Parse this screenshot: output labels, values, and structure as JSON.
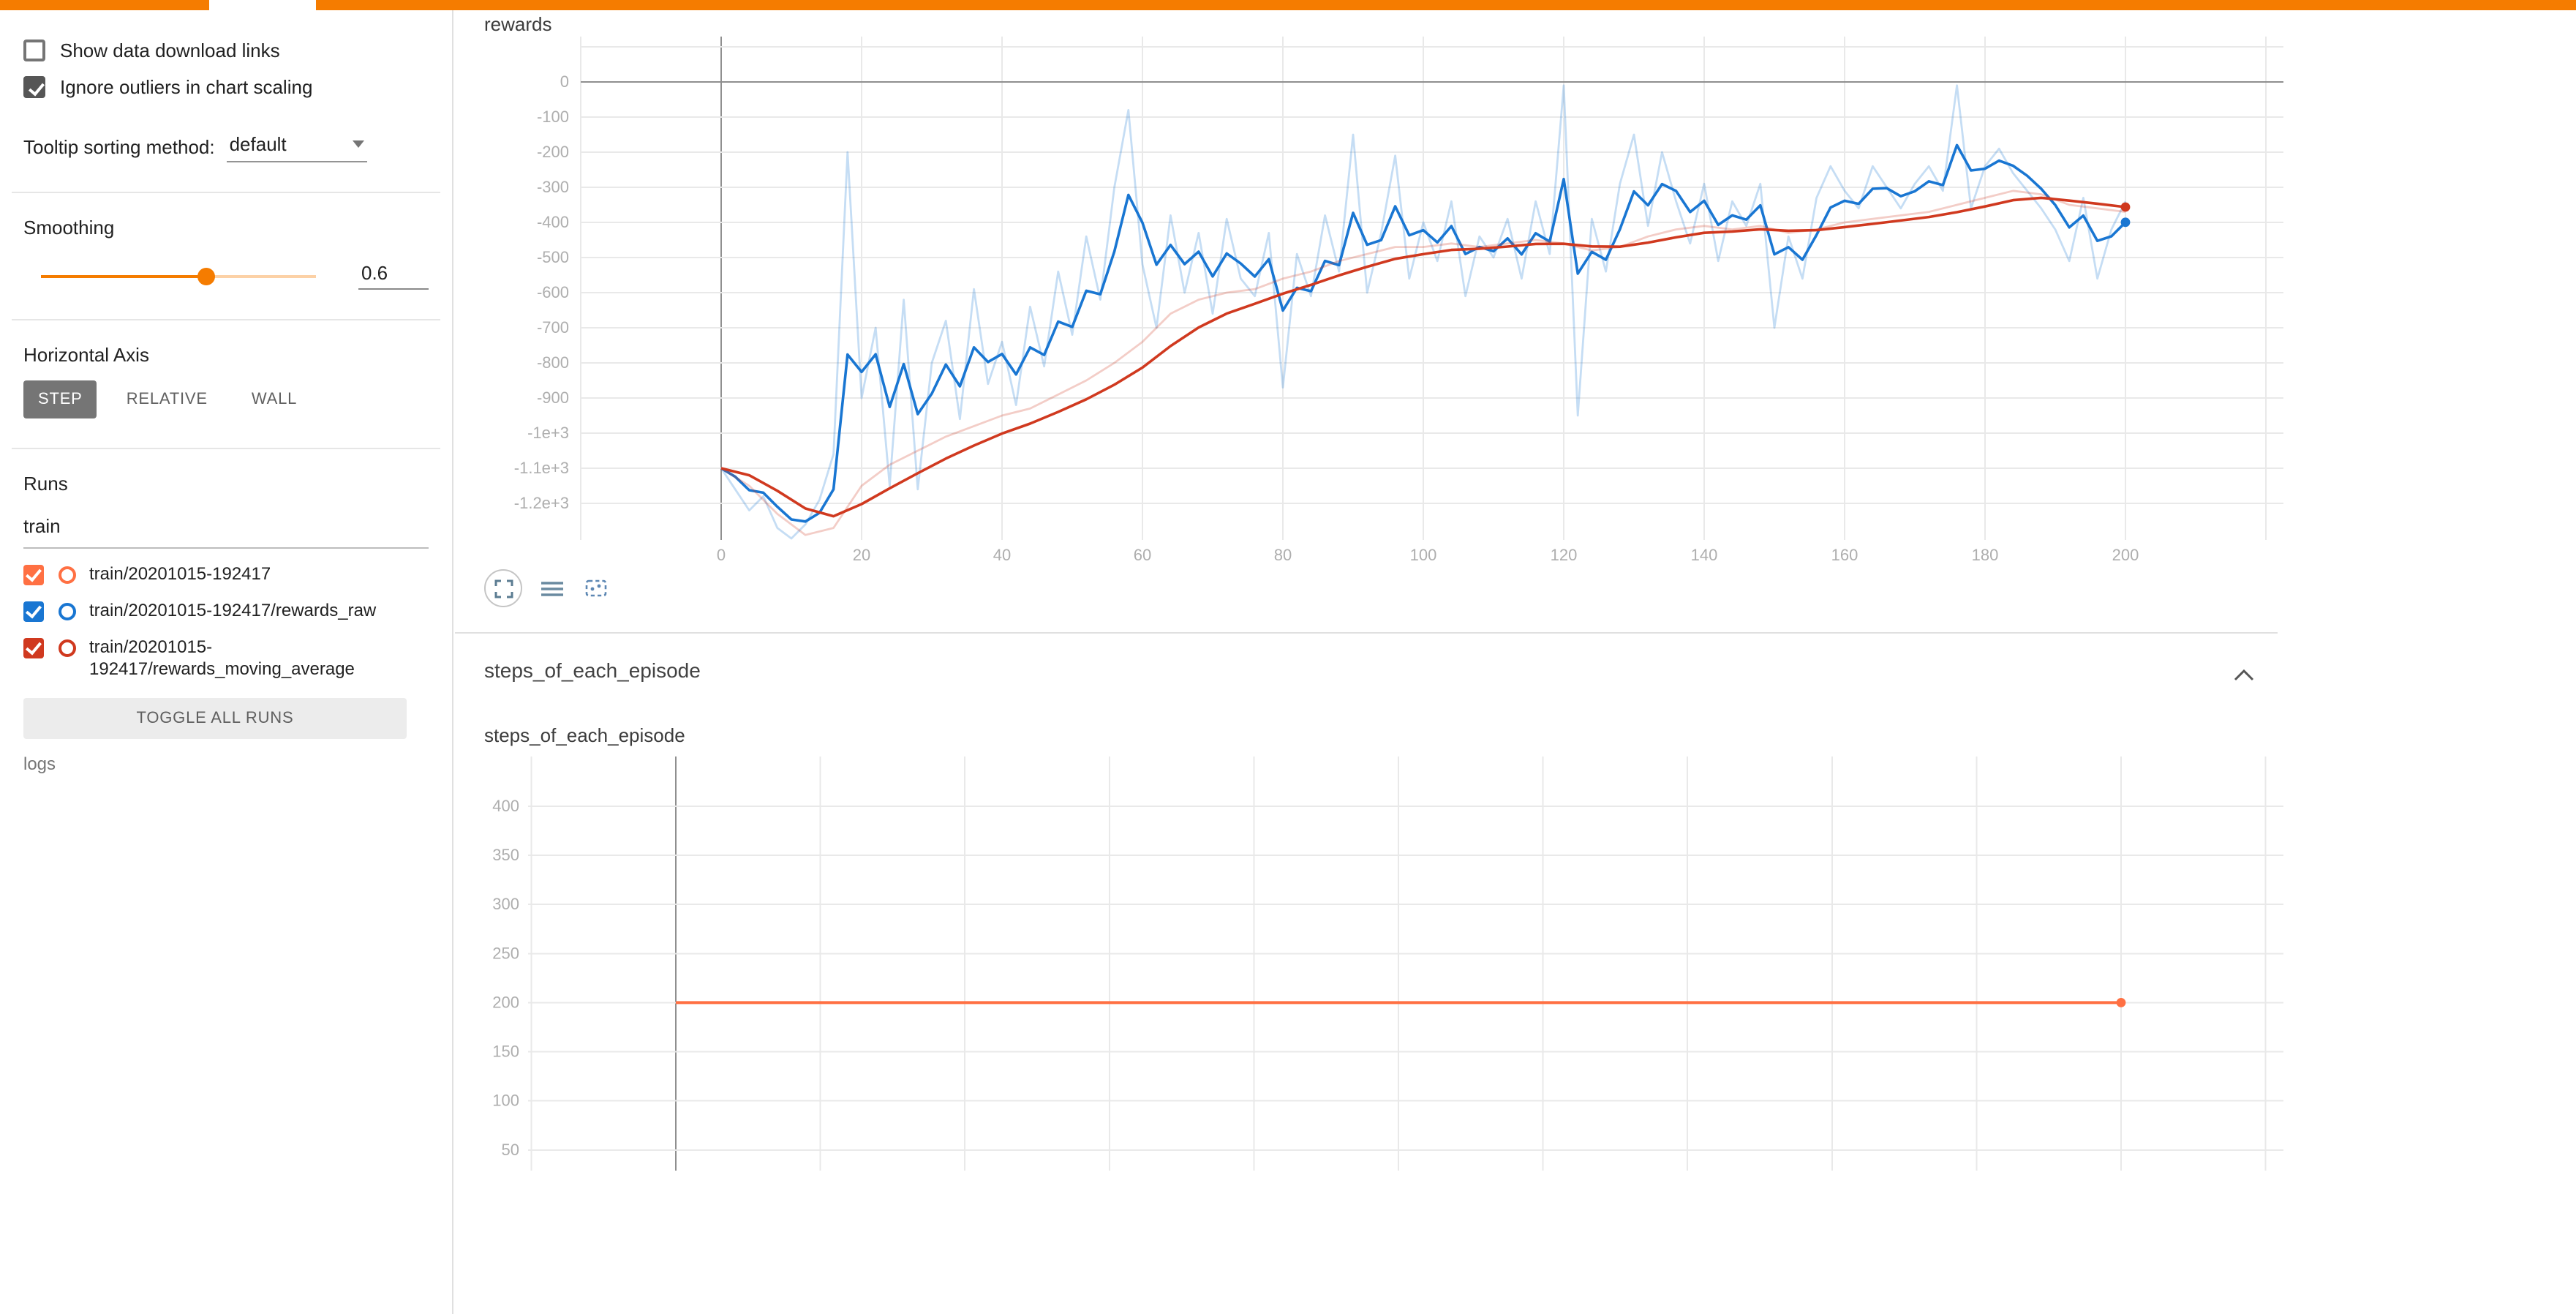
{
  "colors": {
    "accent_orange": "#f57c00",
    "run_orange": "#ff7043",
    "run_blue": "#1976d2",
    "run_red": "#d0391f",
    "grid": "#e9e9e9",
    "zero_line": "#8f8f8f"
  },
  "sidebar": {
    "checkboxes": [
      {
        "label": "Show data download links",
        "checked": false
      },
      {
        "label": "Ignore outliers in chart scaling",
        "checked": true
      }
    ],
    "tooltip_sorting": {
      "label": "Tooltip sorting method:",
      "value": "default"
    },
    "smoothing": {
      "label": "Smoothing",
      "value": "0.6",
      "fraction": 0.6
    },
    "horizontal_axis": {
      "label": "Horizontal Axis",
      "options": [
        "STEP",
        "RELATIVE",
        "WALL"
      ],
      "selected": "STEP"
    },
    "runs": {
      "label": "Runs",
      "filter_value": "train",
      "items": [
        {
          "label": "train/20201015-192417",
          "color": "#ff7043",
          "checked": true
        },
        {
          "label": "train/20201015-192417/rewards_raw",
          "color": "#1976d2",
          "checked": true
        },
        {
          "label": "train/20201015-192417/rewards_moving_average",
          "color": "#d0391f",
          "checked": true
        }
      ],
      "toggle_all_label": "TOGGLE ALL RUNS",
      "group_label": "logs"
    }
  },
  "main": {
    "steps_section": {
      "title": "steps_of_each_episode",
      "expanded": true
    }
  },
  "chart_toolbar": {
    "icons": [
      "expand",
      "data-table",
      "fit-domain"
    ]
  },
  "chart_data": [
    {
      "type": "line",
      "title": "rewards",
      "xlim": [
        -20,
        222
      ],
      "ylim": [
        -1300,
        130
      ],
      "grid": true,
      "legend": "none",
      "smoothing_applied": 0.6,
      "xtick_values": [
        0,
        20,
        40,
        60,
        80,
        100,
        120,
        140,
        160,
        180,
        200
      ],
      "ytick_values": [
        0,
        -100,
        -200,
        -300,
        -400,
        -500,
        -600,
        -700,
        -800,
        -900,
        -1000,
        -1100,
        -1200
      ],
      "ytick_labels": [
        "0",
        "-100",
        "-200",
        "-300",
        "-400",
        "-500",
        "-600",
        "-700",
        "-800",
        "-900",
        "-1e+3",
        "-1.1e+3",
        "-1.2e+3"
      ],
      "series": [
        {
          "name": "train/20201015-192417/rewards_raw",
          "color": "#1976d2",
          "x_start": 0,
          "x_step": 2,
          "y": [
            -1100,
            -1160,
            -1220,
            -1180,
            -1270,
            -1300,
            -1260,
            -1190,
            -1060,
            -200,
            -900,
            -700,
            -1150,
            -620,
            -1160,
            -800,
            -680,
            -960,
            -590,
            -860,
            -740,
            -920,
            -640,
            -810,
            -540,
            -720,
            -440,
            -620,
            -300,
            -80,
            -520,
            -700,
            -380,
            -600,
            -430,
            -660,
            -390,
            -560,
            -610,
            -430,
            -870,
            -490,
            -610,
            -380,
            -540,
            -150,
            -600,
            -430,
            -210,
            -560,
            -400,
            -510,
            -340,
            -610,
            -440,
            -500,
            -390,
            -560,
            -340,
            -490,
            -10,
            -950,
            -390,
            -540,
            -290,
            -150,
            -410,
            -200,
            -340,
            -460,
            -290,
            -510,
            -340,
            -410,
            -290,
            -700,
            -440,
            -560,
            -330,
            -240,
            -310,
            -360,
            -240,
            -300,
            -360,
            -290,
            -240,
            -310,
            -10,
            -360,
            -240,
            -190,
            -260,
            -310,
            -360,
            -420,
            -510,
            -330,
            -560,
            -420,
            -340
          ]
        },
        {
          "name": "train/20201015-192417/rewards_moving_average",
          "color": "#d0391f",
          "x_start": 0,
          "x_step": 4,
          "y": [
            -1100,
            -1150,
            -1230,
            -1290,
            -1270,
            -1150,
            -1090,
            -1050,
            -1010,
            -980,
            -950,
            -930,
            -890,
            -850,
            -800,
            -740,
            -660,
            -620,
            -600,
            -590,
            -560,
            -540,
            -510,
            -490,
            -470,
            -470,
            -460,
            -470,
            -460,
            -450,
            -460,
            -480,
            -470,
            -440,
            -420,
            -410,
            -420,
            -410,
            -430,
            -420,
            -400,
            -390,
            -380,
            -370,
            -350,
            -330,
            -310,
            -320,
            -350,
            -360,
            -370
          ]
        }
      ]
    },
    {
      "type": "line",
      "title": "steps_of_each_episode",
      "xlim": [
        -20,
        222
      ],
      "ylim": [
        30,
        450
      ],
      "grid": true,
      "legend": "none",
      "ytick_values": [
        400,
        350,
        300,
        250,
        200,
        150,
        100,
        50
      ],
      "ytick_labels": [
        "400",
        "350",
        "300",
        "250",
        "200",
        "150",
        "100",
        "50"
      ],
      "series": [
        {
          "name": "train/20201015-192417",
          "color": "#ff7043",
          "x": [
            0,
            200
          ],
          "y": [
            200,
            200
          ]
        }
      ]
    }
  ]
}
